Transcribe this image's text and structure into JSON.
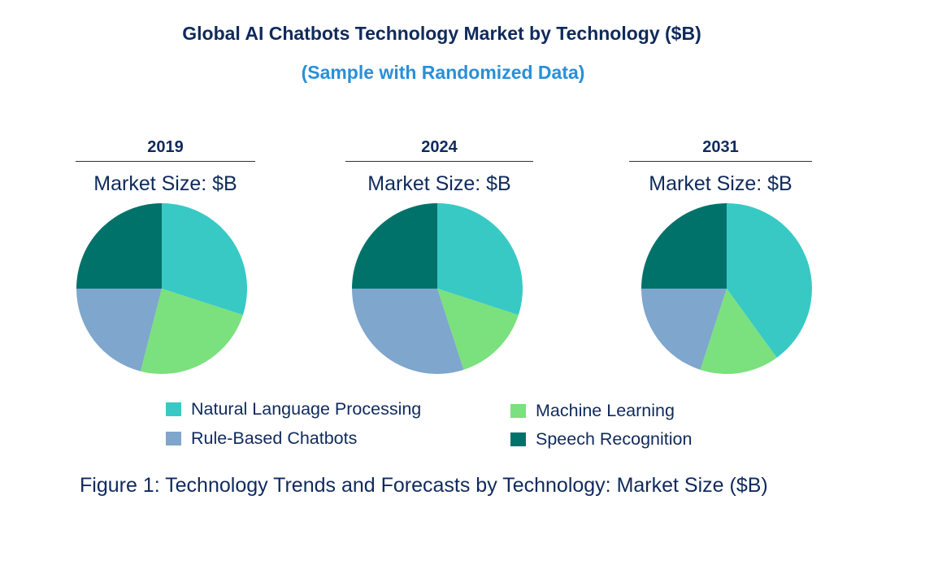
{
  "title": "Global AI Chatbots Technology Market by Technology ($B)",
  "subtitle": "(Sample with Randomized Data)",
  "caption": "Figure 1: Technology Trends and Forecasts by Technology: Market Size ($B)",
  "chart_data": {
    "type": "pie",
    "market_size_label": "Market Size: $B",
    "categories": [
      "Natural Language Processing",
      "Machine Learning",
      "Rule-Based Chatbots",
      "Speech Recognition"
    ],
    "colors": {
      "Natural Language Processing": "#38c9c5",
      "Machine Learning": "#7be07e",
      "Rule-Based Chatbots": "#7fa6cc",
      "Speech Recognition": "#00726a"
    },
    "panels": [
      {
        "year": "2019",
        "values": [
          30,
          24,
          21,
          25
        ]
      },
      {
        "year": "2024",
        "values": [
          30,
          15,
          30,
          25
        ]
      },
      {
        "year": "2031",
        "values": [
          40,
          15,
          20,
          25
        ]
      }
    ],
    "legend": [
      {
        "label": "Natural Language Processing",
        "color": "#38c9c5"
      },
      {
        "label": "Machine Learning",
        "color": "#7be07e"
      },
      {
        "label": "Rule-Based Chatbots",
        "color": "#7fa6cc"
      },
      {
        "label": "Speech Recognition",
        "color": "#00726a"
      }
    ]
  }
}
